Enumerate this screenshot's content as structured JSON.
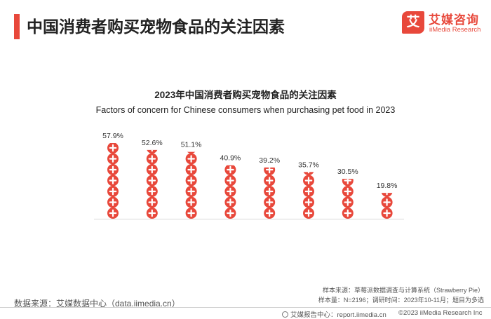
{
  "header": {
    "title": "中国消费者购买宠物食品的关注因素"
  },
  "logo": {
    "cn": "艾媒咨询",
    "en": "iiMedia Research",
    "mark_char": "艾"
  },
  "colors": {
    "accent": "#e8483b",
    "title_bar": "#e8483b",
    "baseline": "#d9d9d9"
  },
  "chart_data": {
    "type": "bar",
    "style": "pictogram",
    "title": "2023年中国消费者购买宠物食品的关注因素",
    "subtitle": "Factors of concern for Chinese consumers when purchasing pet food in 2023",
    "categories": [
      "",
      "",
      "",
      "",
      "",
      "",
      "",
      ""
    ],
    "values": [
      57.9,
      52.6,
      51.1,
      40.9,
      39.2,
      35.7,
      30.5,
      19.8
    ],
    "value_labels": [
      "57.9%",
      "52.6%",
      "51.1%",
      "40.9%",
      "39.2%",
      "35.7%",
      "30.5%",
      "19.8%"
    ],
    "unit": "%",
    "icon": "plus-circle-icon",
    "xlabel": "",
    "ylabel": "",
    "ylim": [
      0,
      57.9
    ],
    "grid": false,
    "legend": "none"
  },
  "sources": {
    "left": "数据来源：艾媒数据中心（data.iimedia.cn）",
    "right_line1": "样本来源：草莓派数据调查与计算系统（Strawberry Pie）",
    "right_line2": "样本量：N=2196；调研时间：2023年10-11月；题目为多选"
  },
  "footer": {
    "report_center": "艾媒报告中心：report.iimedia.cn",
    "copyright": "©2023  iiMedia Research  Inc"
  }
}
